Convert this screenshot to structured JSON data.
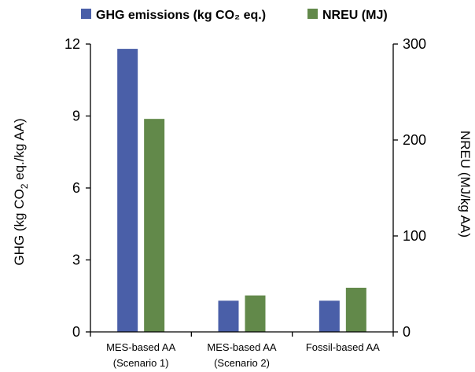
{
  "chart_data": {
    "type": "bar",
    "categories": [
      [
        "MES-based AA",
        "(Scenario 1)"
      ],
      [
        "MES-based AA",
        "(Scenario 2)"
      ],
      [
        "Fossil-based AA"
      ]
    ],
    "series": [
      {
        "name": "GHG emissions (kg CO₂ eq.)",
        "axis": "left",
        "color": "#4a5fa8",
        "values": [
          11.8,
          1.3,
          1.3
        ]
      },
      {
        "name": "NREU (MJ)",
        "axis": "right",
        "color": "#62894a",
        "values": [
          222,
          38,
          46
        ]
      }
    ],
    "ylabel_left": {
      "pre": "GHG (kg CO",
      "sub": "2",
      "post": " eq./kg AA)"
    },
    "ylabel_right": "NREU (MJ/kg AA)",
    "ylim_left": [
      0,
      12
    ],
    "yticks_left": [
      0,
      3,
      6,
      9,
      12
    ],
    "ylim_right": [
      0,
      300
    ],
    "yticks_right": [
      0,
      100,
      200,
      300
    ],
    "grid": false,
    "legend_position": "top"
  }
}
